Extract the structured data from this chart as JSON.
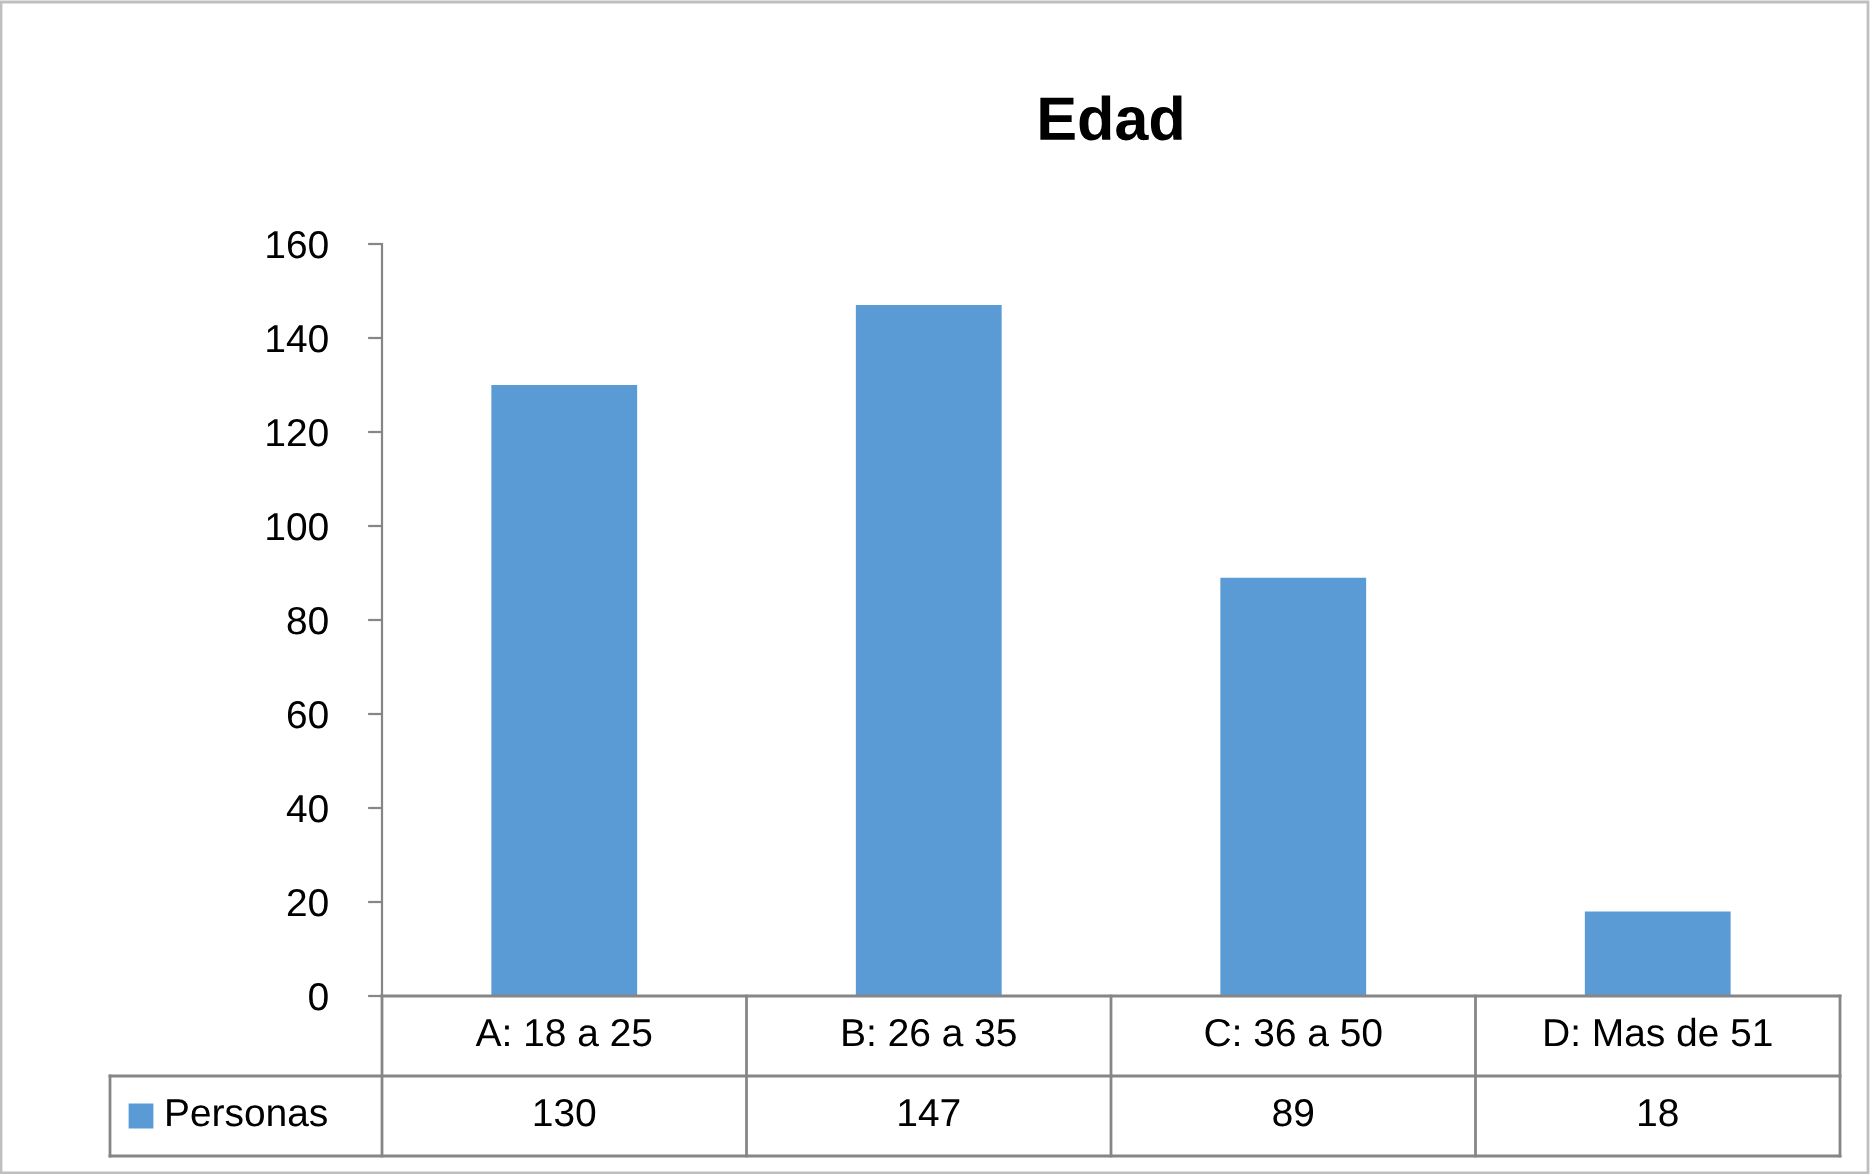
{
  "chart_data": {
    "type": "bar",
    "title": "Edad",
    "categories": [
      "A: 18 a 25",
      "B: 26 a 35",
      "C: 36 a 50",
      "D: Mas de 51"
    ],
    "series": [
      {
        "name": "Personas",
        "color": "#5b9bd5",
        "values": [
          130,
          147,
          89,
          18
        ]
      }
    ],
    "ylim": [
      0,
      160
    ],
    "yticks": [
      0,
      20,
      40,
      60,
      80,
      100,
      120,
      140,
      160
    ],
    "grid": false,
    "data_labels": true,
    "legend": "bottom"
  }
}
